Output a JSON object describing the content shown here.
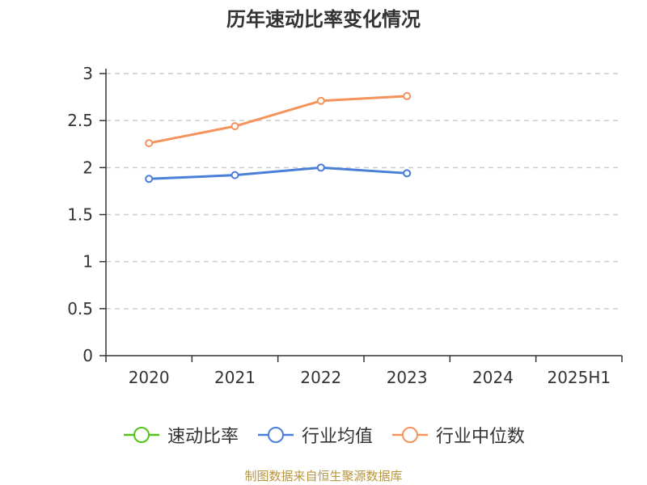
{
  "chart_data": {
    "type": "line",
    "title": "历年速动比率变化情况",
    "categories": [
      "2020",
      "2021",
      "2022",
      "2023",
      "2024",
      "2025H1"
    ],
    "ylim": [
      0,
      3
    ],
    "yticks": [
      "0",
      "0.5",
      "1",
      "1.5",
      "2",
      "2.5",
      "3"
    ],
    "grid": true,
    "legend_position": "bottom",
    "series": [
      {
        "name": "速动比率",
        "color": "#52c41a",
        "values": [
          null,
          null,
          null,
          null,
          null,
          null
        ]
      },
      {
        "name": "行业均值",
        "color": "#4a7fd8",
        "values": [
          1.88,
          1.92,
          2.0,
          1.94,
          null,
          null
        ]
      },
      {
        "name": "行业中位数",
        "color": "#f4935a",
        "values": [
          2.26,
          2.44,
          2.71,
          2.76,
          null,
          null
        ]
      }
    ]
  },
  "source_note": "制图数据来自恒生聚源数据库"
}
